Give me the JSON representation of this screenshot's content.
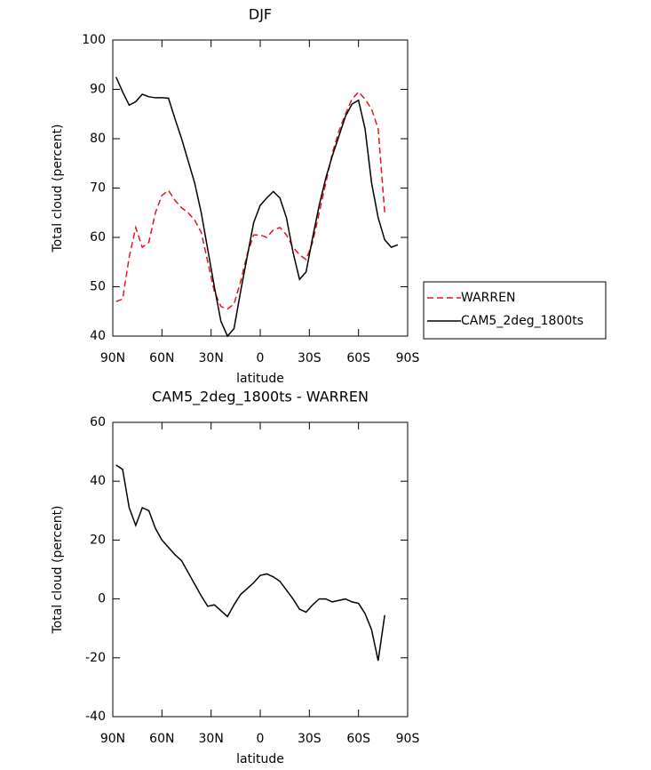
{
  "chart_data": [
    {
      "type": "line",
      "title": "DJF",
      "x_label": "latitude",
      "y_label": "Total cloud (percent)",
      "x": [
        88,
        84,
        80,
        76,
        72,
        68,
        64,
        60,
        56,
        52,
        48,
        44,
        40,
        36,
        32,
        28,
        24,
        20,
        16,
        12,
        8,
        4,
        0,
        -4,
        -8,
        -12,
        -16,
        -20,
        -24,
        -28,
        -32,
        -36,
        -40,
        -44,
        -48,
        -52,
        -56,
        -60,
        -64,
        -68,
        -72,
        -76,
        -80,
        -84
      ],
      "series": [
        {
          "name": "WARREN",
          "color": "#e8141c",
          "dash": true,
          "values": [
            47,
            47.5,
            56,
            62,
            58,
            59,
            65,
            68.5,
            69.5,
            67.5,
            66,
            65,
            63.5,
            61,
            55,
            49,
            46,
            45.5,
            46.5,
            51,
            56.5,
            60.5,
            60.5,
            60,
            61.5,
            62,
            60.5,
            58,
            56.5,
            55.5,
            59,
            65,
            71,
            77,
            81.5,
            85,
            88,
            89.5,
            88,
            86,
            82,
            65,
            null,
            null
          ]
        },
        {
          "name": "CAM5_2deg_1800ts",
          "color": "#000000",
          "dash": false,
          "values": [
            92.5,
            89.5,
            86.8,
            87.5,
            89,
            88.5,
            88.3,
            88.3,
            88.2,
            84,
            80,
            75.5,
            71,
            65,
            57.5,
            50,
            43,
            40,
            41.5,
            49,
            56,
            63,
            66.5,
            68,
            69.3,
            68,
            64,
            57,
            51.5,
            53,
            60,
            66.5,
            72,
            76.5,
            80.5,
            84.5,
            87,
            87.8,
            82,
            71,
            64,
            59.5,
            58,
            58.5
          ]
        }
      ],
      "xlim": [
        90,
        -90
      ],
      "xticks": [
        {
          "value": 90,
          "label": "90N"
        },
        {
          "value": 60,
          "label": "60N"
        },
        {
          "value": 30,
          "label": "30N"
        },
        0,
        {
          "value": -30,
          "label": "30S"
        },
        {
          "value": -60,
          "label": "60S"
        },
        {
          "value": -90,
          "label": "90S"
        }
      ],
      "ylim": [
        40,
        100
      ],
      "yticks": [
        40,
        50,
        60,
        70,
        80,
        90,
        100
      ],
      "legend": "right"
    },
    {
      "type": "line",
      "title": "CAM5_2deg_1800ts - WARREN",
      "x_label": "latitude",
      "y_label": "Total cloud (percent)",
      "x": [
        88,
        84,
        80,
        76,
        72,
        68,
        64,
        60,
        56,
        52,
        48,
        44,
        40,
        36,
        32,
        28,
        24,
        20,
        16,
        12,
        8,
        4,
        0,
        -4,
        -8,
        -12,
        -16,
        -20,
        -24,
        -28,
        -32,
        -36,
        -40,
        -44,
        -48,
        -52,
        -56,
        -60,
        -64,
        -68,
        -72,
        -76,
        -80,
        -84
      ],
      "values": [
        45.5,
        44,
        31,
        25,
        31,
        30,
        24,
        20,
        17.5,
        15,
        13,
        9,
        5,
        1,
        -2.5,
        -2,
        -4,
        -6,
        -2,
        1.5,
        3.5,
        5.5,
        8,
        8.5,
        7.5,
        6,
        3,
        0,
        -3.5,
        -4.5,
        -2,
        0,
        0,
        -1,
        -0.5,
        0,
        -1,
        -1.5,
        -5,
        -10.5,
        -21,
        -5.5,
        null,
        null
      ],
      "color": "#000000",
      "xlim": [
        90,
        -90
      ],
      "xticks": [
        {
          "value": 90,
          "label": "90N"
        },
        {
          "value": 60,
          "label": "60N"
        },
        {
          "value": 30,
          "label": "30N"
        },
        0,
        {
          "value": -30,
          "label": "30S"
        },
        {
          "value": -60,
          "label": "60S"
        },
        {
          "value": -90,
          "label": "90S"
        }
      ],
      "ylim": [
        -40,
        60
      ],
      "yticks": [
        -40,
        -20,
        0,
        20,
        40,
        60
      ]
    }
  ]
}
